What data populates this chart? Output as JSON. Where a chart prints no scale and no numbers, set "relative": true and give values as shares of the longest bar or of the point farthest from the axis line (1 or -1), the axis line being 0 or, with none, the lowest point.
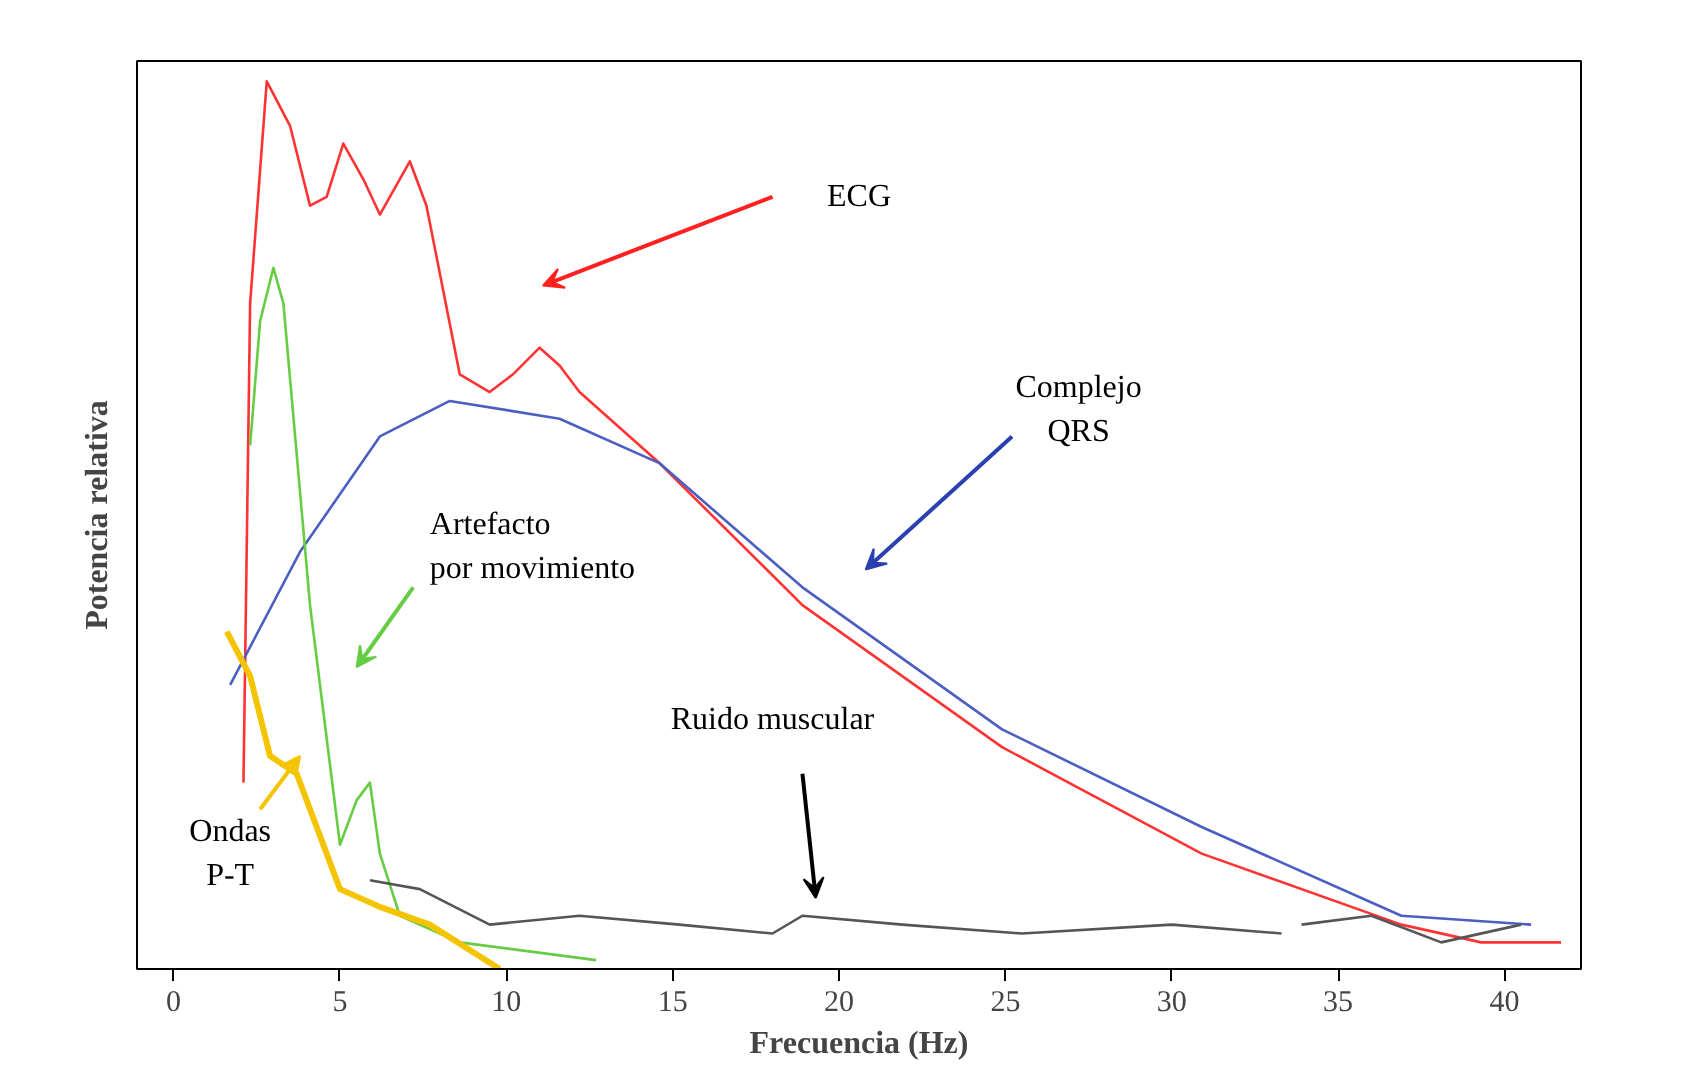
{
  "chart_data": {
    "type": "line",
    "relative": true,
    "xlabel": "Frecuencia (Hz)",
    "ylabel": "Potencia relativa",
    "xlim": [
      -1.1,
      42.3
    ],
    "xticks": [
      0,
      5,
      10,
      15,
      20,
      25,
      30,
      35,
      40
    ],
    "grid": false,
    "marker": "none",
    "line_style": "solid",
    "annotations": [
      "ECG",
      "Complejo QRS",
      "Artefacto por movimiento",
      "Ruido muscular",
      "Ondas P-T"
    ],
    "series": [
      {
        "color": "#ff3333",
        "x": [
          2.1,
          2.3,
          2.8,
          3.5,
          4.1,
          4.6,
          5.1,
          5.7,
          6.2,
          7.1,
          7.6,
          8.6,
          9.5,
          10.2,
          11.0,
          11.6,
          12.2,
          14.6,
          18.9,
          24.9,
          30.9,
          36.9,
          39.3,
          41.7
        ],
        "values": [
          0.21,
          0.75,
          1.0,
          0.95,
          0.86,
          0.87,
          0.93,
          0.89,
          0.85,
          0.91,
          0.86,
          0.67,
          0.65,
          0.67,
          0.7,
          0.68,
          0.65,
          0.57,
          0.41,
          0.25,
          0.13,
          0.05,
          0.03,
          0.03
        ]
      },
      {
        "color": "#4a5fc1",
        "x": [
          1.7,
          3.8,
          6.2,
          8.3,
          11.6,
          14.6,
          18.9,
          24.9,
          30.9,
          36.9,
          40.8
        ],
        "values": [
          0.32,
          0.47,
          0.6,
          0.64,
          0.62,
          0.57,
          0.43,
          0.27,
          0.16,
          0.06,
          0.05
        ]
      },
      {
        "color": "#66cc44",
        "x": [
          2.3,
          2.6,
          3.0,
          3.3,
          4.1,
          5.0,
          5.5,
          5.9,
          6.2,
          6.8,
          8.6,
          12.7
        ],
        "values": [
          0.59,
          0.73,
          0.79,
          0.75,
          0.41,
          0.14,
          0.19,
          0.21,
          0.13,
          0.06,
          0.03,
          0.01
        ]
      },
      {
        "color": "#555555",
        "x": [
          5.9,
          7.4,
          9.5,
          12.2,
          15.2,
          18.0,
          18.9,
          21.9,
          25.5,
          30.0,
          33.3,
          33.6,
          33.9,
          36.0,
          38.1,
          40.5
        ],
        "values": [
          0.1,
          0.09,
          0.05,
          0.06,
          0.05,
          0.04,
          0.06,
          0.05,
          0.04,
          0.05,
          0.04,
          null,
          0.05,
          0.06,
          0.03,
          0.05
        ]
      },
      {
        "color": "#f5c400",
        "x": [
          1.6,
          2.3,
          2.9,
          3.7,
          4.3,
          5.0,
          6.2,
          7.7,
          9.8
        ],
        "values": [
          0.38,
          0.33,
          0.24,
          0.22,
          0.16,
          0.09,
          0.07,
          0.05,
          0.0
        ]
      }
    ]
  }
}
